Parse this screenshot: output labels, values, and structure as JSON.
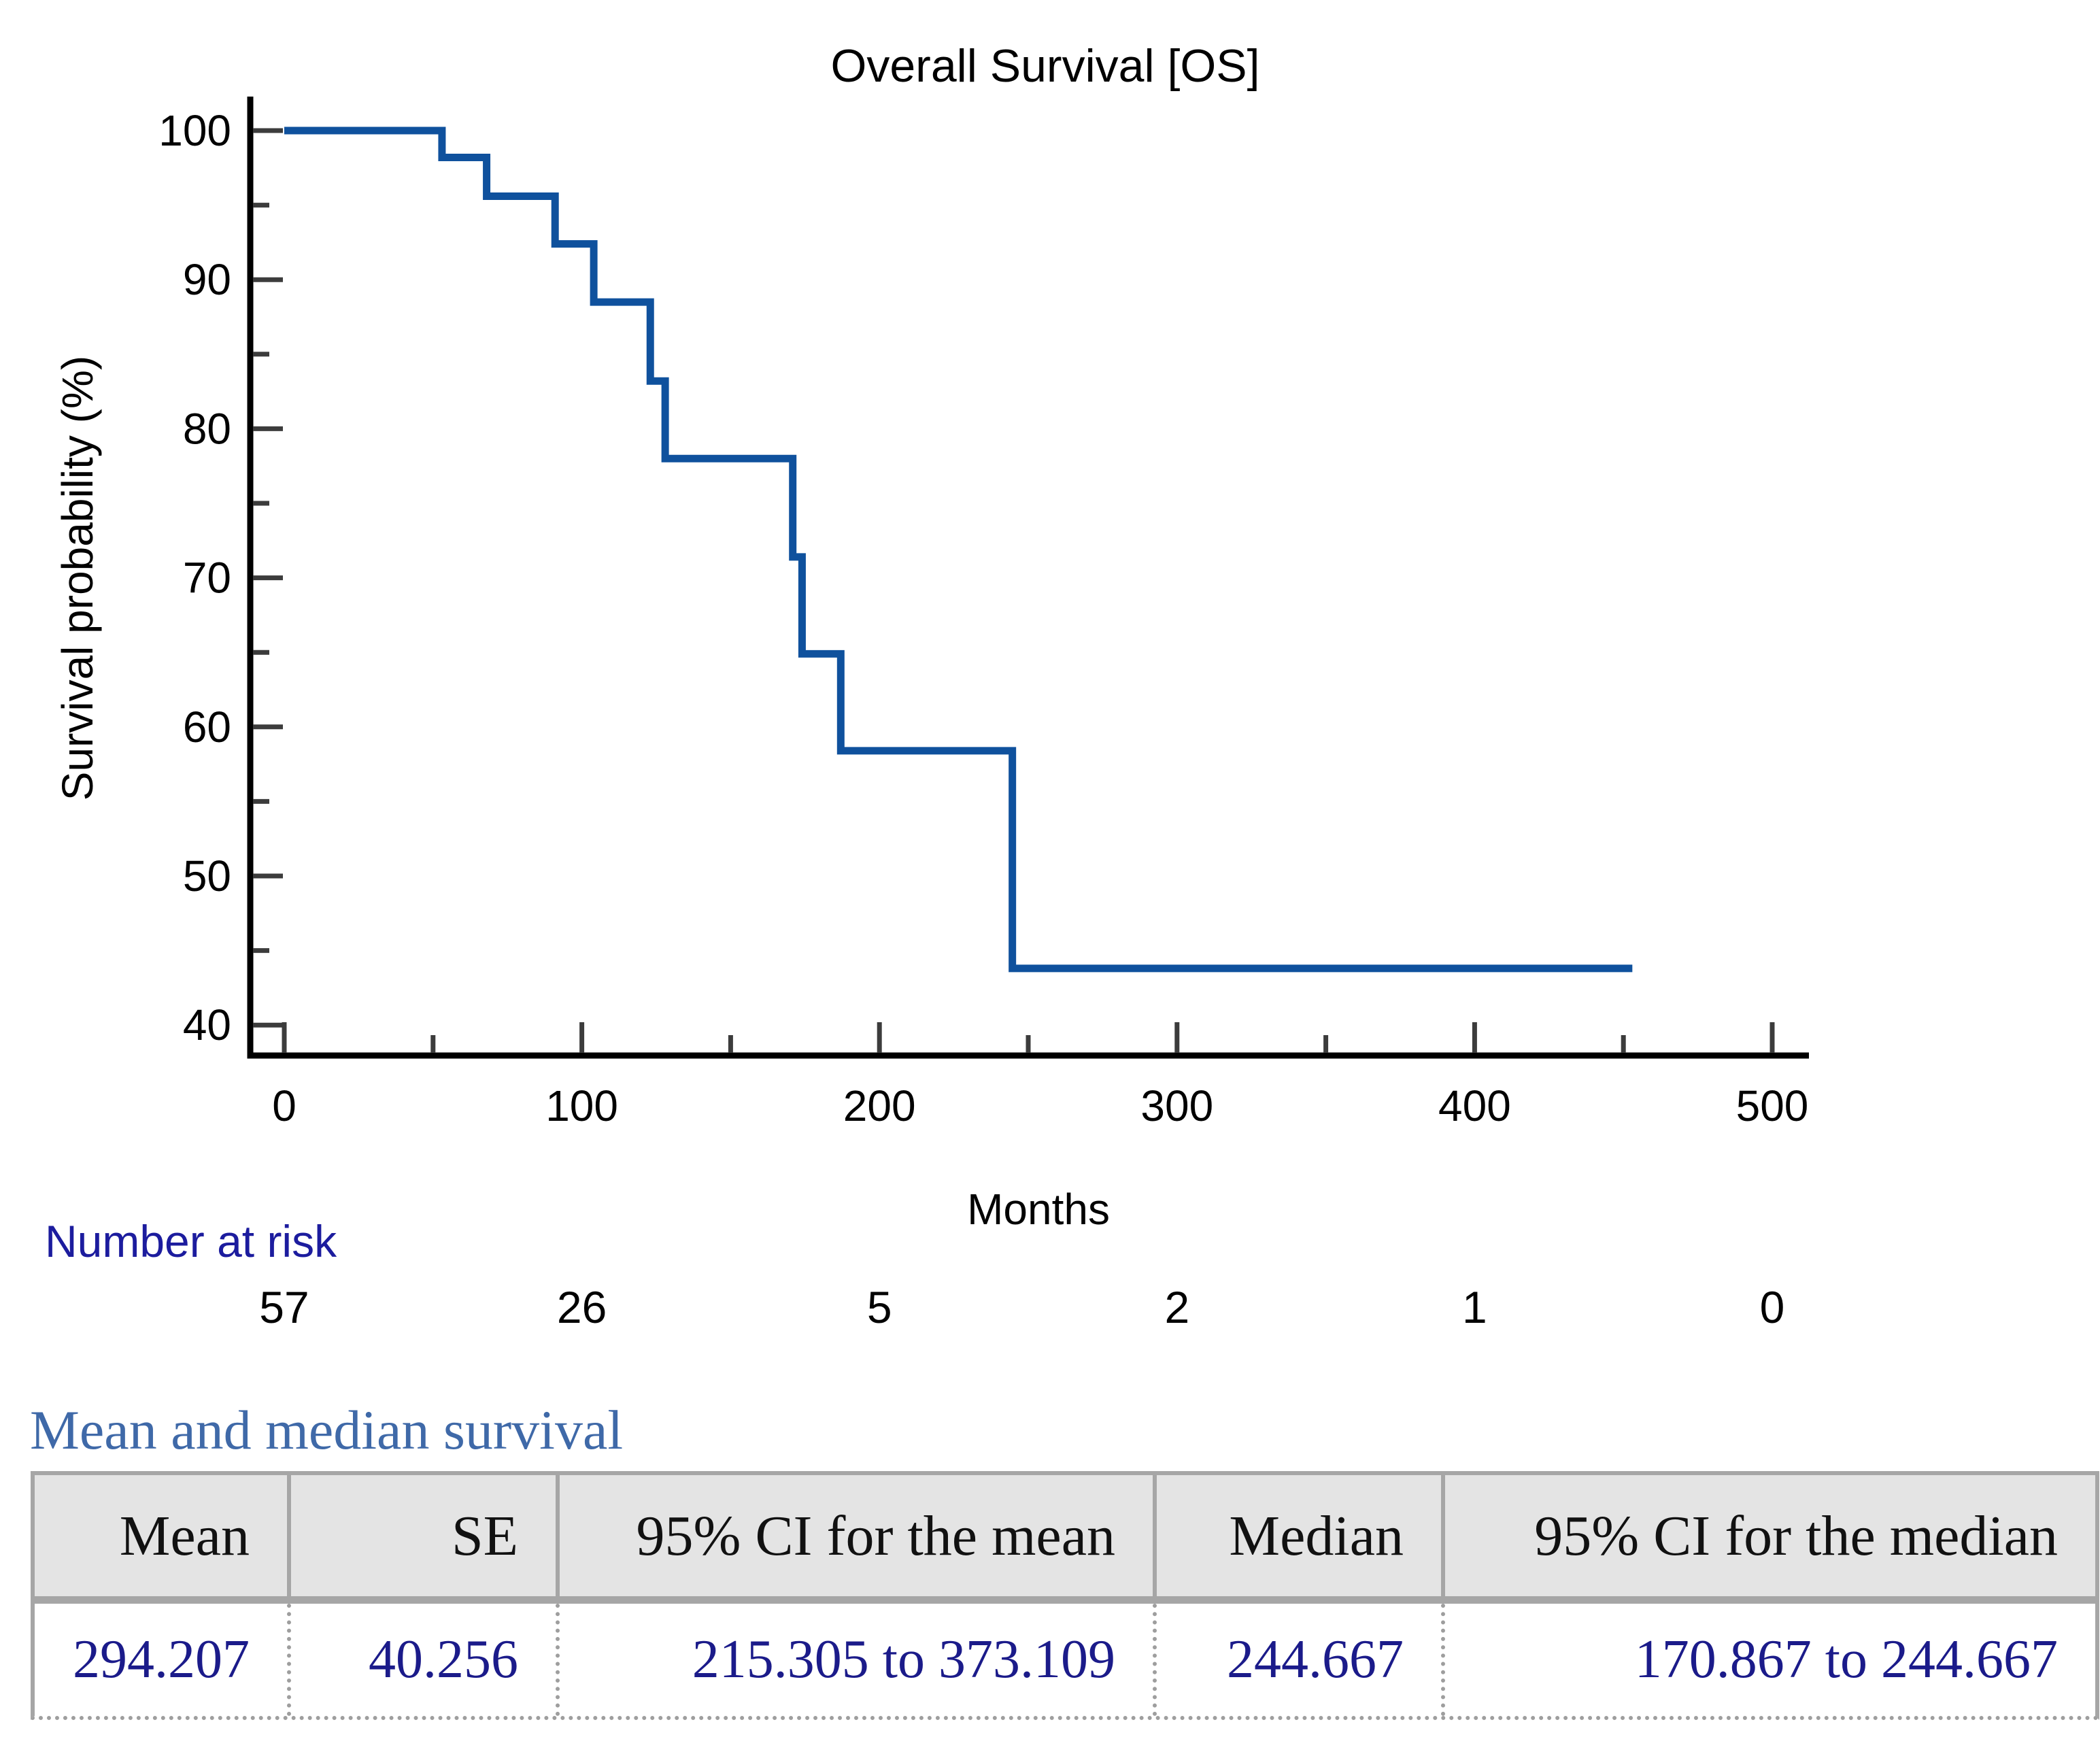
{
  "chart_data": {
    "type": "line",
    "subtype": "kaplan-meier-step",
    "title": "Overall Survival [OS]",
    "xlabel": "Months",
    "ylabel": "Survival probability (%)",
    "xlim": [
      0,
      512
    ],
    "ylim": [
      38,
      102
    ],
    "x_ticks_major": [
      0,
      100,
      200,
      300,
      400,
      500
    ],
    "x_ticks_minor": [
      50,
      150,
      250,
      350,
      450
    ],
    "y_ticks_major": [
      40,
      50,
      60,
      70,
      80,
      90,
      100
    ],
    "y_ticks_minor": [
      45,
      55,
      65,
      75,
      85,
      95
    ],
    "grid": false,
    "legend": "none",
    "series": [
      {
        "name": "Overall Survival",
        "km_steps_time_months": [
          0,
          53,
          68,
          91,
          104,
          123,
          128,
          170.867,
          174,
          187,
          244.667
        ],
        "km_steps_survival_pct": [
          100,
          98.2,
          95.6,
          92.4,
          88.5,
          83.2,
          78.0,
          71.4,
          64.9,
          58.4,
          43.8
        ],
        "end_of_followup_months": 453
      }
    ],
    "number_at_risk": {
      "label": "Number at risk",
      "times": [
        0,
        100,
        200,
        300,
        400,
        500
      ],
      "counts": [
        "57",
        "26",
        "5",
        "2",
        "1",
        "0"
      ]
    }
  },
  "table": {
    "heading": "Mean and median survival",
    "columns": [
      "Mean",
      "SE",
      "95% CI for the mean",
      "Median",
      "95% CI for the median"
    ],
    "row": [
      "294.207",
      "40.256",
      "215.305 to 373.109",
      "244.667",
      "170.867 to 244.667"
    ]
  },
  "colors": {
    "curve": "#0f519d",
    "axis": "#000000",
    "tick": "#3c3c3c",
    "tick_label": "#000000",
    "title": "#000000",
    "risk_label": "#1c1c9e",
    "risk_count": "#000000",
    "table_heading": "#3f69a8",
    "table_value": "#1b1b8a",
    "table_border": "#a6a6a6",
    "header_bg": "#e4e4e4"
  }
}
